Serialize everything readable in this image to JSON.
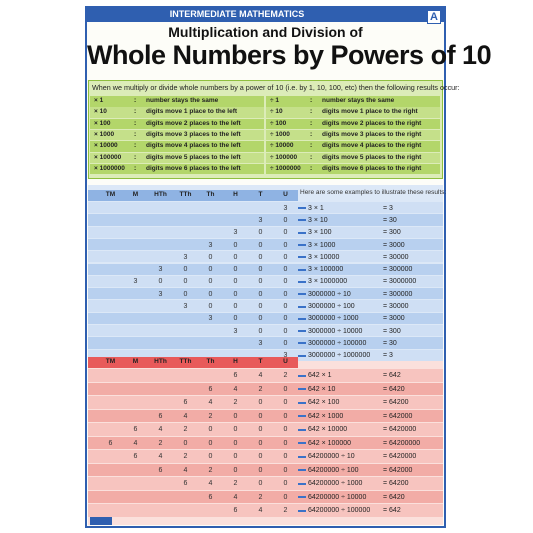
{
  "header": {
    "band": "INTERMEDIATE MATHEMATICS",
    "logo": "A",
    "subtitle": "Multiplication and Division of",
    "title": "Whole Numbers by Powers of 10"
  },
  "rules": {
    "intro": "When we multiply or divide whole numbers by a power of 10 (i.e. by 1, 10, 100, etc) then the following results occur:",
    "separator": ":",
    "multiply": [
      {
        "op": "× 1",
        "text": "number stays the same"
      },
      {
        "op": "× 10",
        "text": "digits move 1 place to the left"
      },
      {
        "op": "× 100",
        "text": "digits move 2 places to the left"
      },
      {
        "op": "× 1000",
        "text": "digits move 3 places to the left"
      },
      {
        "op": "× 10000",
        "text": "digits move 4 places to the left"
      },
      {
        "op": "× 100000",
        "text": "digits move 5 places to the left"
      },
      {
        "op": "× 1000000",
        "text": "digits move 6 places to the left"
      }
    ],
    "divide": [
      {
        "op": "÷ 1",
        "text": "number stays the same"
      },
      {
        "op": "÷ 10",
        "text": "digits move 1 place to the right"
      },
      {
        "op": "÷ 100",
        "text": "digits move 2 places to the right"
      },
      {
        "op": "÷ 1000",
        "text": "digits move 3 places to the right"
      },
      {
        "op": "÷ 10000",
        "text": "digits move 4 places to the right"
      },
      {
        "op": "÷ 100000",
        "text": "digits move 5 places to the right"
      },
      {
        "op": "÷ 1000000",
        "text": "digits move 6 places to the right"
      }
    ]
  },
  "place_values": [
    "TM",
    "M",
    "HTh",
    "TTh",
    "Th",
    "H",
    "T",
    "U"
  ],
  "examples_intro": "Here are some examples to illustrate these results:",
  "blue_table": {
    "rows": [
      {
        "digits": [
          null,
          null,
          null,
          null,
          null,
          null,
          null,
          "3"
        ],
        "expression": "3 × 1",
        "result": "= 3"
      },
      {
        "digits": [
          null,
          null,
          null,
          null,
          null,
          null,
          "3",
          "0"
        ],
        "expression": "3 × 10",
        "result": "= 30"
      },
      {
        "digits": [
          null,
          null,
          null,
          null,
          null,
          "3",
          "0",
          "0"
        ],
        "expression": "3 × 100",
        "result": "= 300"
      },
      {
        "digits": [
          null,
          null,
          null,
          null,
          "3",
          "0",
          "0",
          "0"
        ],
        "expression": "3 × 1000",
        "result": "= 3000"
      },
      {
        "digits": [
          null,
          null,
          null,
          "3",
          "0",
          "0",
          "0",
          "0"
        ],
        "expression": "3 × 10000",
        "result": "= 30000"
      },
      {
        "digits": [
          null,
          null,
          "3",
          "0",
          "0",
          "0",
          "0",
          "0"
        ],
        "expression": "3 × 100000",
        "result": "= 300000"
      },
      {
        "digits": [
          null,
          "3",
          "0",
          "0",
          "0",
          "0",
          "0",
          "0"
        ],
        "expression": "3 × 1000000",
        "result": "= 3000000"
      },
      {
        "digits": [
          null,
          null,
          "3",
          "0",
          "0",
          "0",
          "0",
          "0"
        ],
        "expression": "3000000 ÷ 10",
        "result": "= 300000"
      },
      {
        "digits": [
          null,
          null,
          null,
          "3",
          "0",
          "0",
          "0",
          "0"
        ],
        "expression": "3000000 ÷ 100",
        "result": "= 30000"
      },
      {
        "digits": [
          null,
          null,
          null,
          null,
          "3",
          "0",
          "0",
          "0"
        ],
        "expression": "3000000 ÷ 1000",
        "result": "= 3000"
      },
      {
        "digits": [
          null,
          null,
          null,
          null,
          null,
          "3",
          "0",
          "0"
        ],
        "expression": "3000000 ÷ 10000",
        "result": "= 300"
      },
      {
        "digits": [
          null,
          null,
          null,
          null,
          null,
          null,
          "3",
          "0"
        ],
        "expression": "3000000 ÷ 100000",
        "result": "= 30"
      },
      {
        "digits": [
          null,
          null,
          null,
          null,
          null,
          null,
          null,
          "3"
        ],
        "expression": "3000000 ÷ 1000000",
        "result": "= 3"
      }
    ]
  },
  "red_table": {
    "rows": [
      {
        "digits": [
          null,
          null,
          null,
          null,
          null,
          "6",
          "4",
          "2"
        ],
        "expression": "642 × 1",
        "result": "= 642"
      },
      {
        "digits": [
          null,
          null,
          null,
          null,
          "6",
          "4",
          "2",
          "0"
        ],
        "expression": "642 × 10",
        "result": "= 6420"
      },
      {
        "digits": [
          null,
          null,
          null,
          "6",
          "4",
          "2",
          "0",
          "0"
        ],
        "expression": "642 × 100",
        "result": "= 64200"
      },
      {
        "digits": [
          null,
          null,
          "6",
          "4",
          "2",
          "0",
          "0",
          "0"
        ],
        "expression": "642 × 1000",
        "result": "= 642000"
      },
      {
        "digits": [
          null,
          "6",
          "4",
          "2",
          "0",
          "0",
          "0",
          "0"
        ],
        "expression": "642 × 10000",
        "result": "= 6420000"
      },
      {
        "digits": [
          "6",
          "4",
          "2",
          "0",
          "0",
          "0",
          "0",
          "0"
        ],
        "expression": "642 × 100000",
        "result": "= 64200000"
      },
      {
        "digits": [
          null,
          "6",
          "4",
          "2",
          "0",
          "0",
          "0",
          "0"
        ],
        "expression": "64200000 ÷ 10",
        "result": "= 6420000"
      },
      {
        "digits": [
          null,
          null,
          "6",
          "4",
          "2",
          "0",
          "0",
          "0"
        ],
        "expression": "64200000 ÷ 100",
        "result": "= 642000"
      },
      {
        "digits": [
          null,
          null,
          null,
          "6",
          "4",
          "2",
          "0",
          "0"
        ],
        "expression": "64200000 ÷ 1000",
        "result": "= 64200"
      },
      {
        "digits": [
          null,
          null,
          null,
          null,
          "6",
          "4",
          "2",
          "0"
        ],
        "expression": "64200000 ÷ 10000",
        "result": "= 6420"
      },
      {
        "digits": [
          null,
          null,
          null,
          null,
          null,
          "6",
          "4",
          "2"
        ],
        "expression": "64200000 ÷ 100000",
        "result": "= 642"
      }
    ]
  }
}
